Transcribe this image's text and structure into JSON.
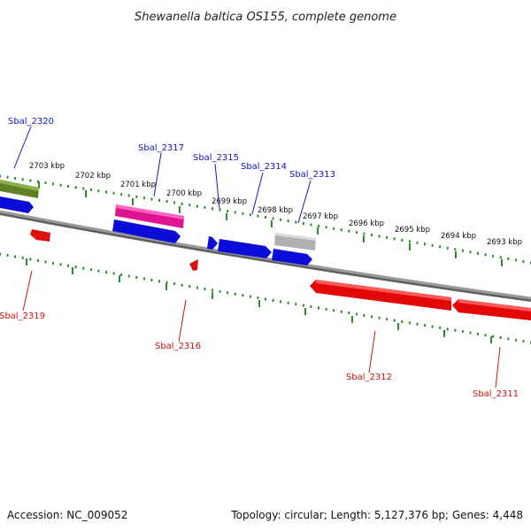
{
  "title": "Shewanella baltica OS155, complete genome",
  "footer": {
    "accession": "Accession: NC_009052",
    "summary": "Topology: circular; Length: 5,127,376 bp; Genes: 4,448"
  },
  "colors": {
    "backbone": "#8a8a8a",
    "ticks": "#2e8b2e",
    "forward_label": "#1515c8",
    "reverse_label": "#cc1111",
    "forward_gene": "#0a0ae0",
    "reverse_gene": "#e00808",
    "rna_gene": "#e0249a",
    "pseudo_gene": "#b4b4b4",
    "other_gene": "#6e8a2a"
  },
  "scale": {
    "unit": "kbp",
    "labels": [
      "2703 kbp",
      "2702 kbp",
      "2701 kbp",
      "2700 kbp",
      "2699 kbp",
      "2698 kbp",
      "2697 kbp",
      "2696 kbp",
      "2695 kbp",
      "2694 kbp",
      "2693 kbp"
    ]
  },
  "genes": {
    "forward": [
      "Sbal_2320",
      "Sbal_2317",
      "Sbal_2315",
      "Sbal_2314",
      "Sbal_2313"
    ],
    "reverse": [
      "Sbal_2319",
      "Sbal_2316",
      "Sbal_2312",
      "Sbal_2311"
    ]
  }
}
